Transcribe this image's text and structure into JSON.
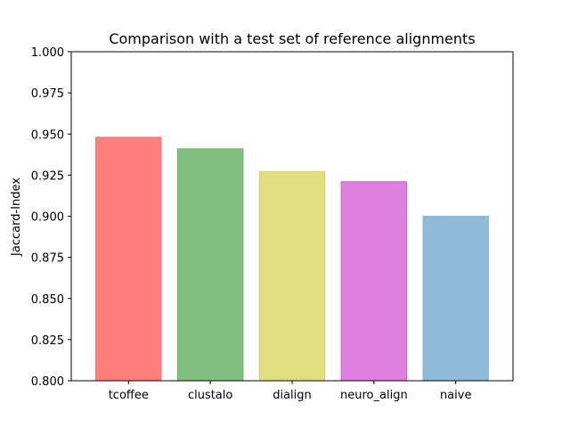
{
  "chart_data": {
    "type": "bar",
    "title": "Comparison with a test set of reference alignments",
    "xlabel": "",
    "ylabel": "Jaccard-Index",
    "ylim": [
      0.8,
      1.0
    ],
    "yticks": [
      "0.800",
      "0.825",
      "0.850",
      "0.875",
      "0.900",
      "0.925",
      "0.950",
      "0.975",
      "1.000"
    ],
    "categories": [
      "tcoffee",
      "clustalo",
      "dialign",
      "neuro_align",
      "naive"
    ],
    "values": [
      0.948,
      0.941,
      0.927,
      0.921,
      0.9
    ],
    "colors": [
      "#ff7f7f",
      "#7fbf7f",
      "#dfdf7f",
      "#df7fdf",
      "#8fbbd9"
    ],
    "edge_colors": [
      "#f07070",
      "#70b070",
      "#d0d060",
      "#cf60cf",
      "#8fbbd9"
    ],
    "grid": false,
    "legend": "none"
  }
}
